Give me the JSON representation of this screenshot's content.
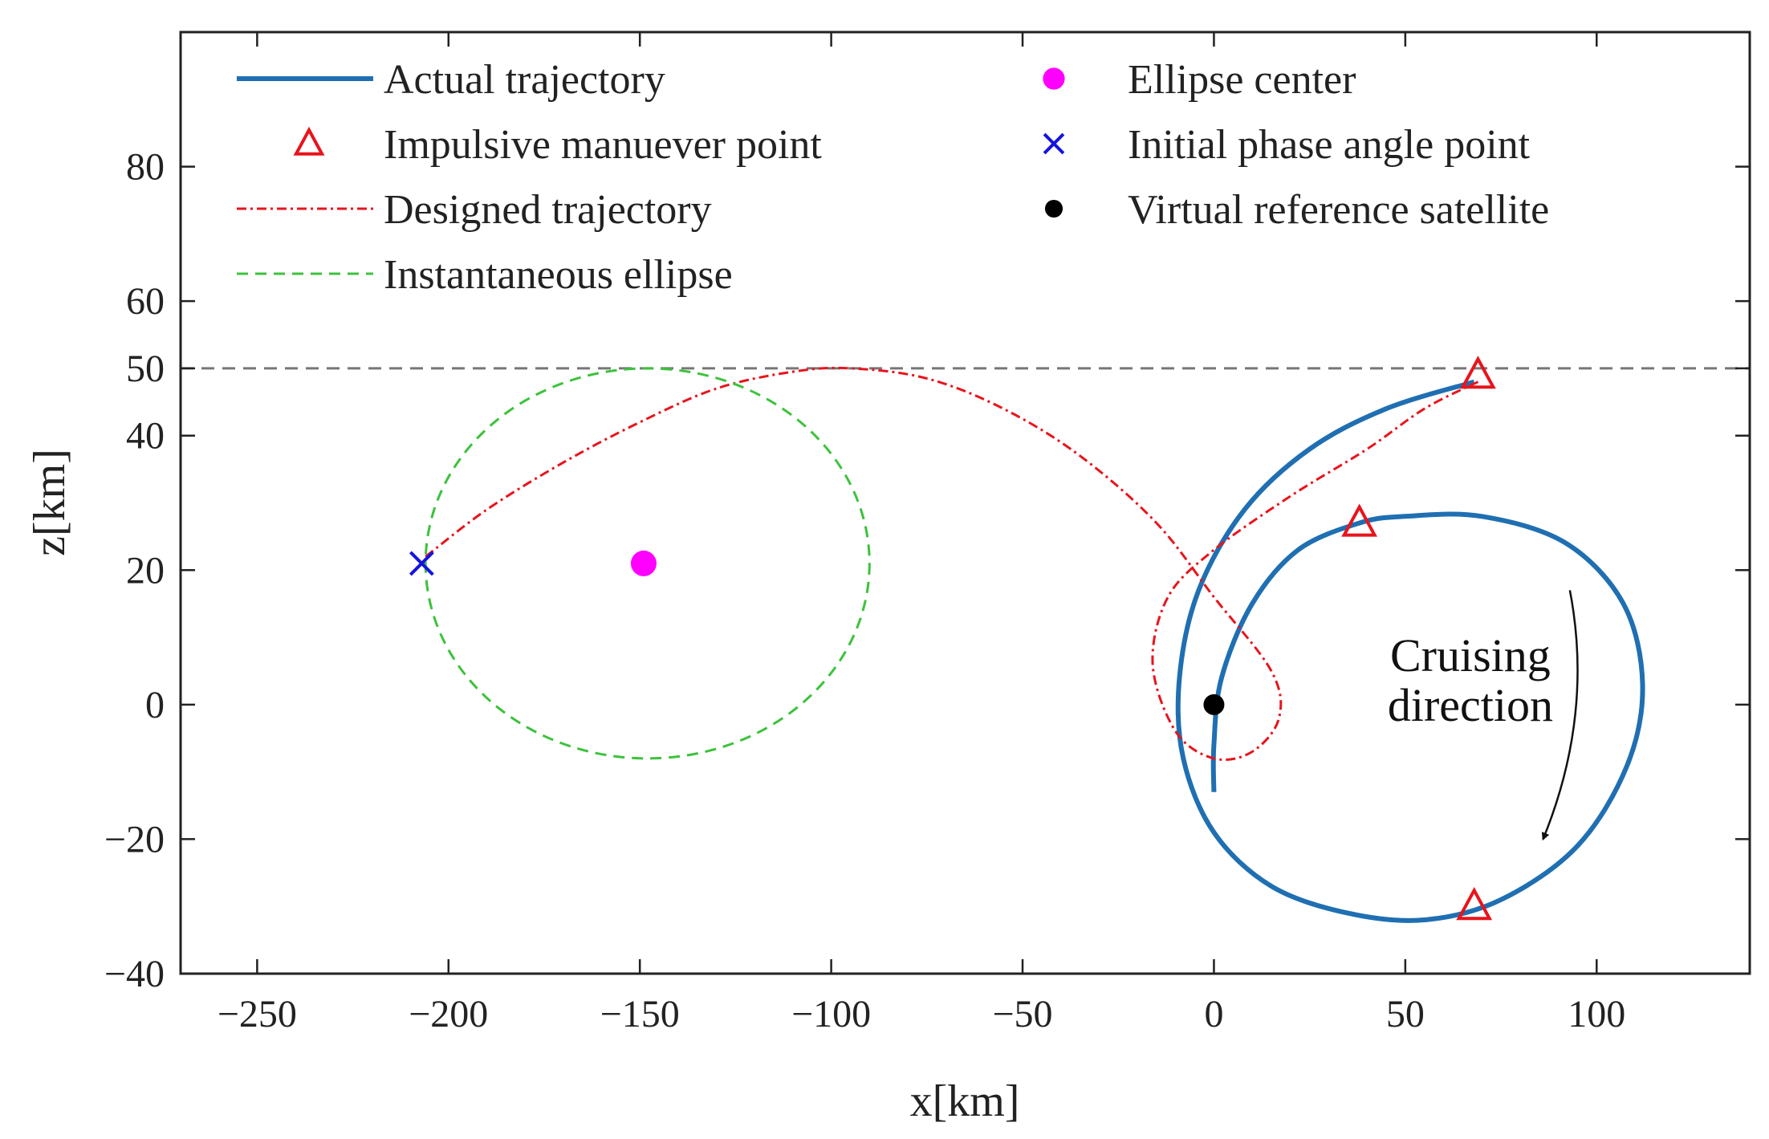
{
  "chart_data": {
    "type": "line",
    "title": "",
    "xlabel": "x[km]",
    "ylabel": "z[km]",
    "xlim": [
      -270,
      140
    ],
    "ylim": [
      -40,
      100
    ],
    "xticks": [
      -250,
      -200,
      -150,
      -100,
      -50,
      0,
      50,
      100
    ],
    "yticks": [
      -40,
      -20,
      0,
      20,
      40,
      50,
      60,
      80
    ],
    "xtick_labels": [
      "−250",
      "−200",
      "−150",
      "−100",
      "−50",
      "0",
      "50",
      "100"
    ],
    "ytick_labels": [
      "−40",
      "−20",
      "0",
      "20",
      "40",
      "50",
      "60",
      "80"
    ],
    "grid": false,
    "legend_position": "top",
    "reference_line": {
      "y": 50,
      "style": "dashed",
      "color": "#777777"
    },
    "series": [
      {
        "name": "Actual trajectory",
        "kind": "line",
        "color": "#1f6fb2",
        "style": "solid",
        "x": [
          68,
          40,
          10,
          -6,
          -8,
          0,
          15,
          35,
          55,
          75,
          95,
          110,
          112,
          105,
          88,
          68,
          45,
          20,
          0,
          -10,
          -8,
          0,
          15,
          35,
          56
        ],
        "y": [
          48,
          43,
          33,
          20,
          5,
          -12,
          -22,
          -30,
          -32,
          -30,
          -24,
          -10,
          0,
          13,
          24,
          28,
          28,
          25,
          17,
          5,
          -2,
          -13,
          22,
          27,
          28
        ]
      },
      {
        "name": "Impulsive manuever point",
        "kind": "marker",
        "marker": "triangle",
        "color": "#e8141c",
        "x": [
          69,
          38,
          68
        ],
        "y": [
          49,
          27,
          -30
        ]
      },
      {
        "name": "Designed trajectory",
        "kind": "line",
        "color": "#e8141c",
        "style": "dashdot",
        "x": [
          -206,
          -190,
          -170,
          -150,
          -130,
          -110,
          -95,
          -75,
          -55,
          -35,
          -15,
          0,
          15,
          17,
          10,
          0,
          -10,
          -16,
          -12,
          0,
          20,
          40,
          55,
          69
        ],
        "y": [
          22,
          29,
          36,
          42,
          47,
          49.5,
          50,
          48.5,
          44,
          37,
          27,
          16,
          5,
          -2,
          -7,
          -8,
          -4,
          6,
          16,
          23,
          31,
          38,
          44,
          48
        ]
      },
      {
        "name": "Instantaneous ellipse",
        "kind": "ellipse",
        "color": "#3cc23c",
        "style": "dashed",
        "center": [
          -148,
          21
        ],
        "semi_x": 58,
        "semi_z": 29
      },
      {
        "name": "Ellipse center",
        "kind": "marker",
        "marker": "circle",
        "color": "#ff00ff",
        "x": [
          -149
        ],
        "y": [
          21
        ]
      },
      {
        "name": "Initial phase angle point",
        "kind": "marker",
        "marker": "x",
        "color": "#1414e0",
        "x": [
          -207
        ],
        "y": [
          21
        ]
      },
      {
        "name": "Virtual reference satellite",
        "kind": "marker",
        "marker": "dot",
        "color": "#000000",
        "x": [
          0
        ],
        "y": [
          0
        ]
      }
    ],
    "annotations": [
      {
        "text_lines": [
          "Cruising",
          "direction"
        ],
        "x": 67,
        "y": 5,
        "arrow": "curved-down"
      }
    ]
  }
}
